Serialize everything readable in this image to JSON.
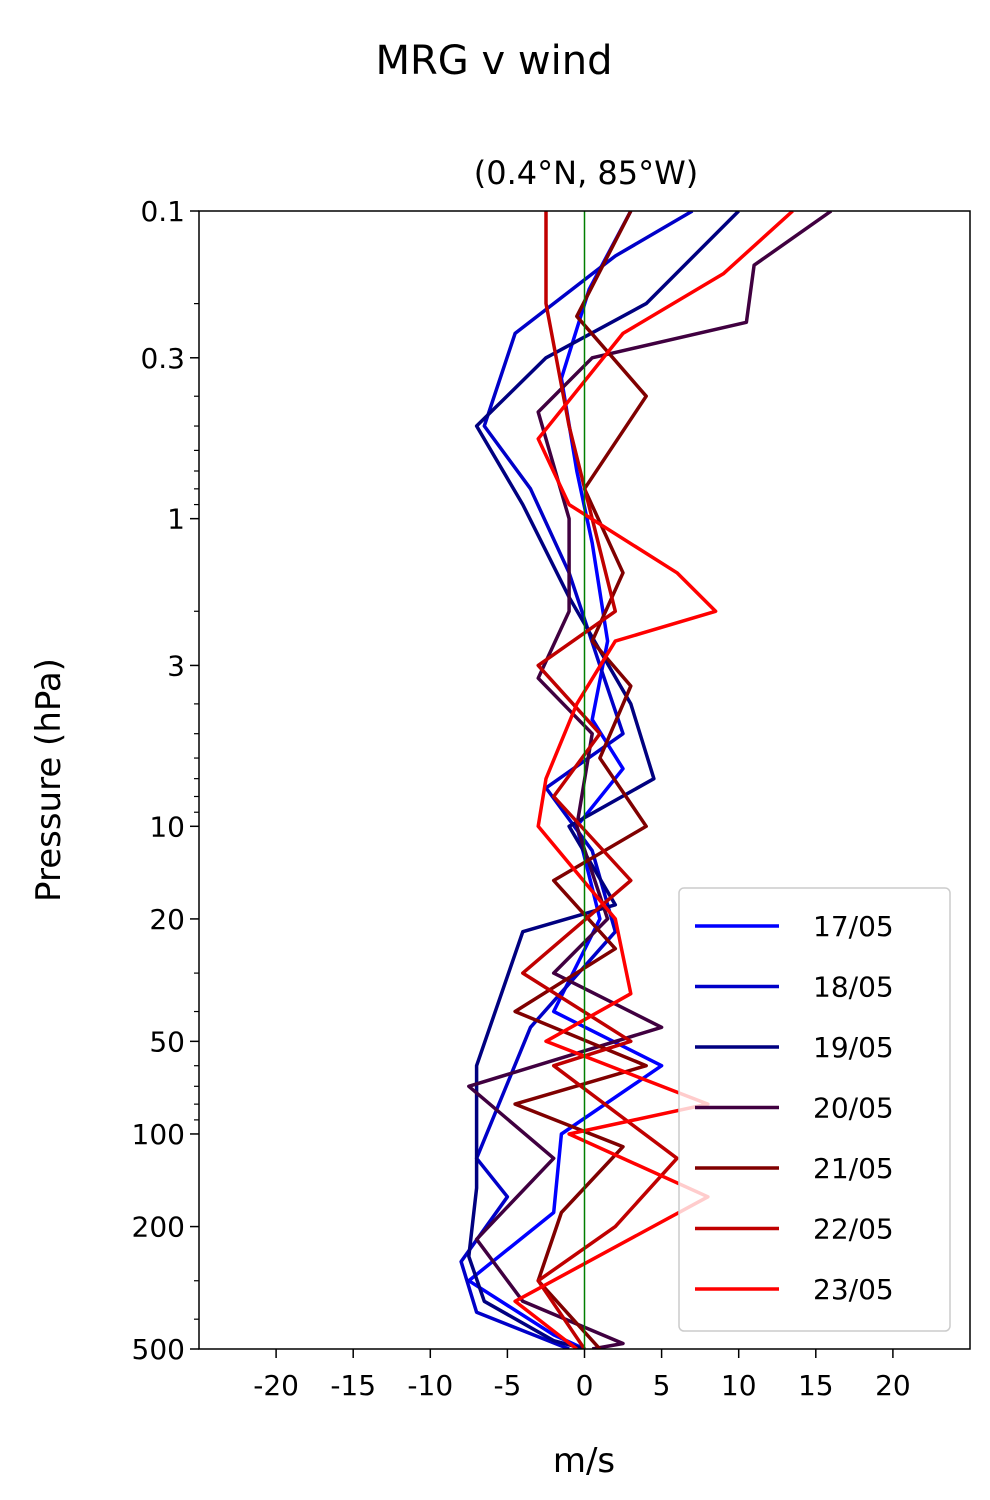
{
  "chart_data": {
    "type": "line",
    "title": "MRG v wind",
    "subtitle": "(0.4°N, 85°W)",
    "xlabel": "m/s",
    "ylabel": "Pressure (hPa)",
    "xlim": [
      -25,
      25
    ],
    "ylim": [
      0.1,
      500
    ],
    "y_scale": "log",
    "y_inverted": true,
    "x_ticks": [
      -20,
      -15,
      -10,
      -5,
      0,
      5,
      10,
      15,
      20
    ],
    "x_tick_labels": [
      "-20",
      "-15",
      "-10",
      "-5",
      "0",
      "5",
      "10",
      "15",
      "20"
    ],
    "y_ticks": [
      0.1,
      0.3,
      1,
      3,
      10,
      20,
      50,
      100,
      200,
      500
    ],
    "y_tick_labels": [
      "0.1",
      "0.3",
      "1",
      "3",
      "10",
      "20",
      "50",
      "100",
      "200",
      "500"
    ],
    "grid": false,
    "legend_position": "bottom-right",
    "reference_line": {
      "x": 0,
      "color": "#007f00"
    },
    "series": [
      {
        "name": "17/05",
        "color": "#0000ff",
        "points": [
          [
            3.0,
            0.1
          ],
          [
            0.3,
            0.18
          ],
          [
            -1.5,
            0.35
          ],
          [
            -0.5,
            0.7
          ],
          [
            0.5,
            1.2
          ],
          [
            1.5,
            2.5
          ],
          [
            0.5,
            4.5
          ],
          [
            2.5,
            6.5
          ],
          [
            -0.5,
            10
          ],
          [
            1.0,
            20
          ],
          [
            -2.0,
            40
          ],
          [
            5.0,
            60
          ],
          [
            -1.5,
            100
          ],
          [
            -2.0,
            180
          ],
          [
            -7.5,
            300
          ],
          [
            -2.0,
            450
          ],
          [
            0.0,
            500
          ]
        ]
      },
      {
        "name": "18/05",
        "color": "#0000c8",
        "points": [
          [
            7.0,
            0.1
          ],
          [
            2.0,
            0.14
          ],
          [
            -4.5,
            0.25
          ],
          [
            -6.5,
            0.5
          ],
          [
            -3.5,
            0.8
          ],
          [
            -1.0,
            1.5
          ],
          [
            1.0,
            3.0
          ],
          [
            2.5,
            5.0
          ],
          [
            -2.5,
            7.5
          ],
          [
            0.5,
            12
          ],
          [
            2.0,
            22
          ],
          [
            -3.5,
            45
          ],
          [
            -7.0,
            120
          ],
          [
            -5.0,
            160
          ],
          [
            -8.0,
            260
          ],
          [
            -7.0,
            380
          ],
          [
            -1.0,
            500
          ]
        ]
      },
      {
        "name": "19/05",
        "color": "#000080",
        "points": [
          [
            10.0,
            0.1
          ],
          [
            4.0,
            0.2
          ],
          [
            -2.5,
            0.3
          ],
          [
            -7.0,
            0.5
          ],
          [
            -4.0,
            0.9
          ],
          [
            -1.0,
            1.8
          ],
          [
            3.0,
            4.0
          ],
          [
            4.5,
            7.0
          ],
          [
            -1.0,
            10
          ],
          [
            2.0,
            18
          ],
          [
            -4.0,
            22
          ],
          [
            -7.0,
            60
          ],
          [
            -7.0,
            150
          ],
          [
            -7.5,
            250
          ],
          [
            -6.5,
            350
          ],
          [
            -2.0,
            470
          ],
          [
            0.0,
            500
          ]
        ]
      },
      {
        "name": "20/05",
        "color": "#400040",
        "points": [
          [
            16.0,
            0.1
          ],
          [
            11.0,
            0.15
          ],
          [
            10.5,
            0.23
          ],
          [
            0.5,
            0.3
          ],
          [
            -3.0,
            0.45
          ],
          [
            -1.0,
            1.0
          ],
          [
            -1.0,
            2.0
          ],
          [
            -3.0,
            3.3
          ],
          [
            0.5,
            5.0
          ],
          [
            -0.5,
            10
          ],
          [
            1.5,
            20
          ],
          [
            -2.0,
            30
          ],
          [
            5.0,
            45
          ],
          [
            -7.5,
            70
          ],
          [
            -2.0,
            120
          ],
          [
            -7.0,
            220
          ],
          [
            -4.0,
            350
          ],
          [
            2.5,
            480
          ],
          [
            0.5,
            500
          ]
        ]
      },
      {
        "name": "21/05",
        "color": "#800000",
        "points": [
          [
            3.0,
            0.1
          ],
          [
            -0.5,
            0.22
          ],
          [
            4.0,
            0.4
          ],
          [
            0.0,
            0.8
          ],
          [
            2.5,
            1.5
          ],
          [
            0.5,
            2.5
          ],
          [
            3.0,
            3.5
          ],
          [
            1.0,
            6.0
          ],
          [
            4.0,
            10
          ],
          [
            -2.0,
            15
          ],
          [
            2.0,
            25
          ],
          [
            -4.5,
            40
          ],
          [
            4.0,
            60
          ],
          [
            -4.5,
            80
          ],
          [
            2.5,
            110
          ],
          [
            -1.5,
            180
          ],
          [
            -3.0,
            300
          ],
          [
            1.0,
            500
          ]
        ]
      },
      {
        "name": "22/05",
        "color": "#c00000",
        "points": [
          [
            -2.5,
            0.1
          ],
          [
            -2.5,
            0.2
          ],
          [
            -1.0,
            0.5
          ],
          [
            0.5,
            1.0
          ],
          [
            2.0,
            2.0
          ],
          [
            -3.0,
            3.0
          ],
          [
            1.0,
            5.0
          ],
          [
            -2.0,
            8.0
          ],
          [
            3.0,
            15
          ],
          [
            -4.0,
            30
          ],
          [
            3.0,
            50
          ],
          [
            -2.0,
            60
          ],
          [
            6.0,
            120
          ],
          [
            2.0,
            200
          ],
          [
            -3.0,
            300
          ],
          [
            0.0,
            500
          ]
        ]
      },
      {
        "name": "23/05",
        "color": "#ff0000",
        "points": [
          [
            13.5,
            0.1
          ],
          [
            9.0,
            0.16
          ],
          [
            2.5,
            0.25
          ],
          [
            -3.0,
            0.55
          ],
          [
            -1.0,
            0.9
          ],
          [
            6.0,
            1.5
          ],
          [
            8.5,
            2.0
          ],
          [
            2.0,
            2.5
          ],
          [
            -0.5,
            4.0
          ],
          [
            -2.5,
            7.0
          ],
          [
            -3.0,
            10
          ],
          [
            2.0,
            20
          ],
          [
            3.0,
            35
          ],
          [
            -2.5,
            50
          ],
          [
            8.0,
            80
          ],
          [
            -1.0,
            100
          ],
          [
            8.0,
            160
          ],
          [
            -4.5,
            350
          ],
          [
            -0.5,
            500
          ]
        ]
      }
    ]
  }
}
